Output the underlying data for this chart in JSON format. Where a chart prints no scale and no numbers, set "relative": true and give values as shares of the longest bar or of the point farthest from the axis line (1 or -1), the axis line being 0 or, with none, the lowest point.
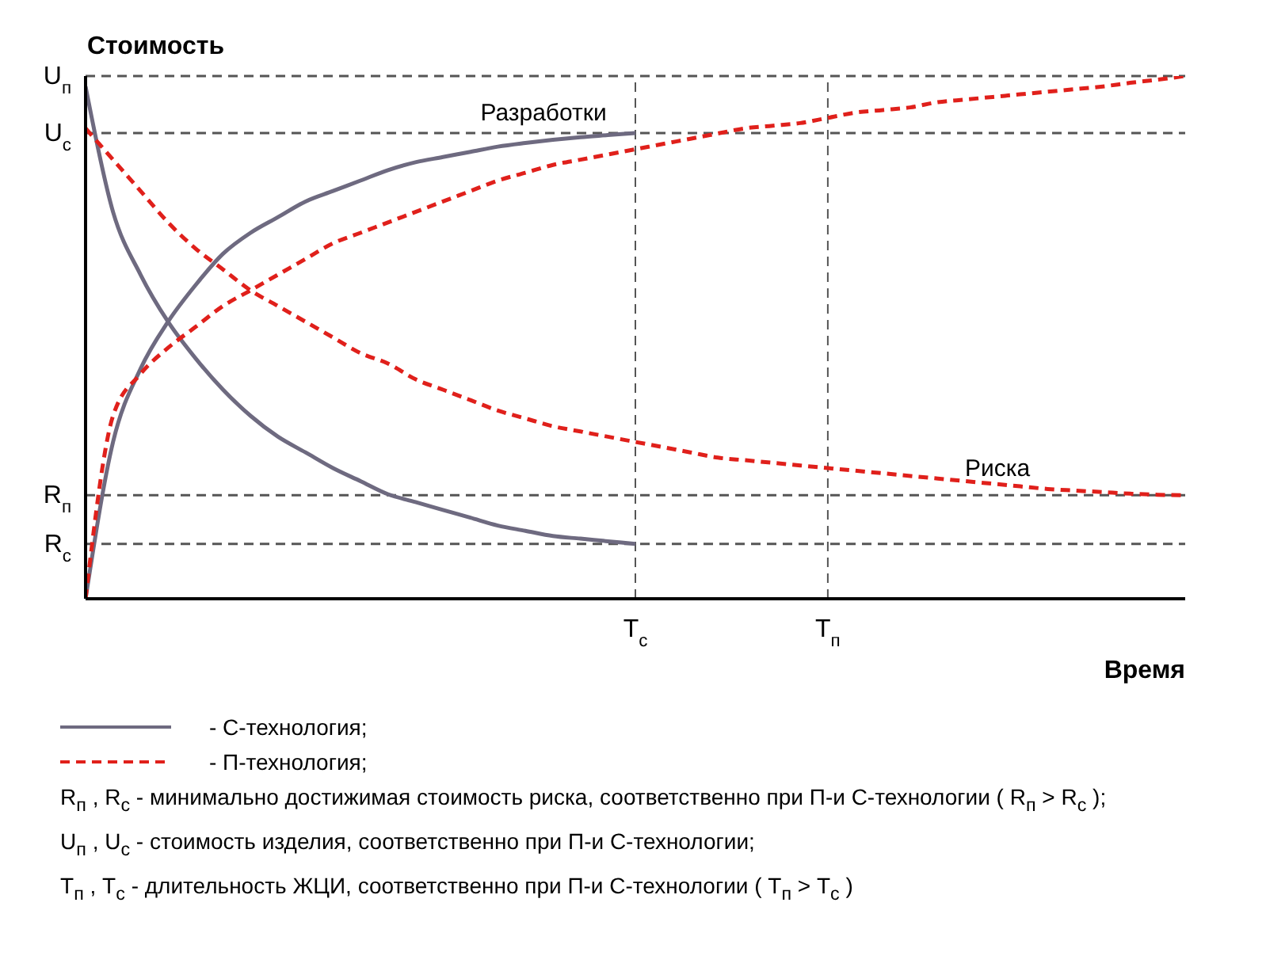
{
  "chart_data": {
    "type": "line",
    "relative": true,
    "ylabel": "Стоимость",
    "xlabel": "Время",
    "categories": [
      null,
      null,
      null,
      null,
      null,
      null,
      null,
      null,
      null,
      null,
      null,
      null,
      null,
      null,
      null,
      null,
      null,
      null,
      null,
      null,
      "T$_{c}$",
      null,
      null,
      null,
      null,
      null,
      null,
      "T$_{п}$",
      null,
      null,
      null,
      null,
      null,
      null,
      null,
      null,
      null,
      null,
      null,
      null,
      null
    ],
    "series": [
      {
        "name": "- С-технология;",
        "color": "#6e6a80",
        "line_style": "solid",
        "values": [
          0,
          0.3,
          0.44,
          0.53,
          0.6,
          0.66,
          0.7,
          0.73,
          0.76,
          0.78,
          0.8,
          0.82,
          0.835,
          0.845,
          0.855,
          0.865,
          0.872,
          0.878,
          0.883,
          0.887,
          0.891,
          null,
          null,
          null,
          null,
          null,
          null,
          null,
          null,
          null,
          null,
          null,
          null,
          null,
          null,
          null,
          null,
          null,
          null,
          null,
          null
        ]
      },
      {
        "color": "#6e6a80",
        "line_style": "solid",
        "values": [
          0.98,
          0.74,
          0.62,
          0.53,
          0.46,
          0.4,
          0.35,
          0.31,
          0.28,
          0.25,
          0.225,
          0.2,
          0.185,
          0.17,
          0.155,
          0.14,
          0.13,
          0.12,
          0.115,
          0.11,
          0.105,
          null,
          null,
          null,
          null,
          null,
          null,
          null,
          null,
          null,
          null,
          null,
          null,
          null,
          null,
          null,
          null,
          null,
          null,
          null,
          null
        ]
      },
      {
        "name": "- П-технология;",
        "color": "#e0201b",
        "line_style": "dashed",
        "values": [
          0,
          0.35,
          0.43,
          0.48,
          0.52,
          0.56,
          0.59,
          0.62,
          0.65,
          0.68,
          0.7,
          0.72,
          0.74,
          0.76,
          0.78,
          0.8,
          0.815,
          0.83,
          0.84,
          0.85,
          0.86,
          0.87,
          0.88,
          0.89,
          0.9,
          0.905,
          0.91,
          0.92,
          0.93,
          0.935,
          0.94,
          0.95,
          0.955,
          0.96,
          0.965,
          0.97,
          0.975,
          0.98,
          0.987,
          0.993,
          1
        ]
      },
      {
        "color": "#e0201b",
        "line_style": "dashed",
        "values": [
          0.9,
          0.84,
          0.78,
          0.72,
          0.67,
          0.63,
          0.59,
          0.56,
          0.53,
          0.5,
          0.47,
          0.45,
          0.42,
          0.4,
          0.38,
          0.36,
          0.345,
          0.33,
          0.32,
          0.31,
          0.3,
          0.29,
          0.28,
          0.27,
          0.265,
          0.26,
          0.255,
          0.25,
          0.245,
          0.24,
          0.235,
          0.23,
          0.225,
          0.22,
          0.215,
          0.21,
          0.207,
          0.204,
          0.201,
          0.199,
          0.198
        ]
      }
    ],
    "ref_lines": [
      {
        "axis": "y",
        "value": 1,
        "label": "U$_{п}$",
        "line_style": "dashed",
        "color": "#555555"
      },
      {
        "axis": "y",
        "value": 0.891,
        "label": "U$_{c}$",
        "line_style": "dashed",
        "color": "#555555"
      },
      {
        "axis": "y",
        "value": 0.198,
        "label": "R$_{п}$",
        "line_style": "dashed",
        "color": "#555555"
      },
      {
        "axis": "y",
        "value": 0.105,
        "label": "R$_{c}$",
        "line_style": "dashed",
        "color": "#555555"
      },
      {
        "axis": "x",
        "value": "T$_{c}$",
        "label": null,
        "line_style": "dashed",
        "color": "#555555"
      },
      {
        "axis": "x",
        "value": "T$_{п}$",
        "label": null,
        "line_style": "dashed",
        "color": "#555555"
      }
    ],
    "annotations": [
      "Разработки",
      "Риска",
      "R$_{п}$ , R$_{c}$  - минимально достижимая стоимость риска, соответственно при П-и С-технологии ( R$_{п}$ > R$_{c}$ );",
      "U$_{п}$ , U$_{c}$  - стоимость изделия, соответственно при П-и С-технологии;",
      "T$_{п}$ , T$_{c}$  - длительность ЖЦИ, соответственно при П-и С-технологии ( T$_{п}$ > T$_{c}$ )"
    ],
    "legend": "bottom",
    "grid": false,
    "marker": "none"
  }
}
